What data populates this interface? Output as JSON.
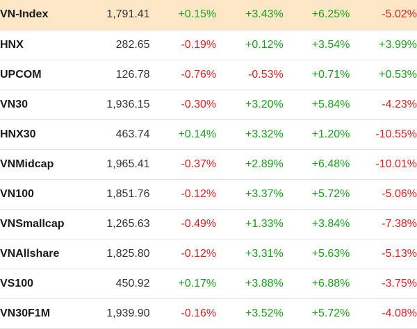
{
  "colors": {
    "positive": "#1aa01a",
    "negative": "#e02020",
    "highlight_bg": "#fde7c6"
  },
  "rows": [
    {
      "name": "VN-Index",
      "price": "1,791.41",
      "changes": [
        "+0.15%",
        "+3.43%",
        "+6.25%",
        "-5.02%"
      ],
      "highlight": true
    },
    {
      "name": "HNX",
      "price": "282.65",
      "changes": [
        "-0.19%",
        "+0.12%",
        "+3.54%",
        "+3.99%"
      ]
    },
    {
      "name": "UPCOM",
      "price": "126.78",
      "changes": [
        "-0.76%",
        "-0.53%",
        "+0.71%",
        "+0.53%"
      ]
    },
    {
      "name": "VN30",
      "price": "1,936.15",
      "changes": [
        "-0.30%",
        "+3.20%",
        "+5.84%",
        "-4.23%"
      ]
    },
    {
      "name": "HNX30",
      "price": "463.74",
      "changes": [
        "+0.14%",
        "+3.32%",
        "+1.20%",
        "-10.55%"
      ]
    },
    {
      "name": "VNMidcap",
      "price": "1,965.41",
      "changes": [
        "-0.37%",
        "+2.89%",
        "+6.48%",
        "-10.01%"
      ]
    },
    {
      "name": "VN100",
      "price": "1,851.76",
      "changes": [
        "-0.12%",
        "+3.37%",
        "+5.72%",
        "-5.06%"
      ]
    },
    {
      "name": "VNSmallcap",
      "price": "1,265.63",
      "changes": [
        "-0.49%",
        "+1.33%",
        "+3.84%",
        "-7.38%"
      ]
    },
    {
      "name": "VNAllshare",
      "price": "1,825.80",
      "changes": [
        "-0.12%",
        "+3.31%",
        "+5.63%",
        "-5.13%"
      ]
    },
    {
      "name": "VS100",
      "price": "450.92",
      "changes": [
        "+0.17%",
        "+3.88%",
        "+6.88%",
        "-3.75%"
      ]
    },
    {
      "name": "VN30F1M",
      "price": "1,939.90",
      "changes": [
        "-0.16%",
        "+3.52%",
        "+5.72%",
        "-4.08%"
      ]
    }
  ]
}
